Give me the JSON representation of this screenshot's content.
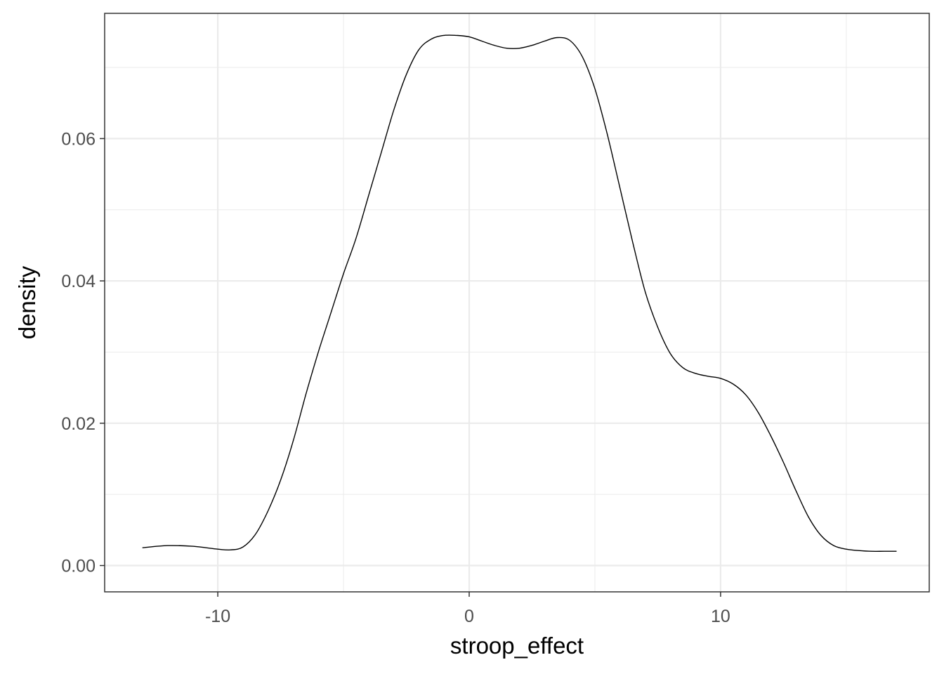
{
  "chart_data": {
    "type": "area",
    "title": "",
    "xlabel": "stroop_effect",
    "ylabel": "density",
    "xlim": [
      -14.5,
      18.3
    ],
    "ylim": [
      -0.0037,
      0.0776
    ],
    "x_ticks": [
      -10,
      0,
      10
    ],
    "x_tick_labels": [
      "-10",
      "0",
      "10"
    ],
    "x_minor_ticks": [
      -5,
      5,
      15
    ],
    "y_ticks": [
      0.0,
      0.02,
      0.04,
      0.06
    ],
    "y_tick_labels": [
      "0.00",
      "0.02",
      "0.04",
      "0.06"
    ],
    "y_minor_ticks": [
      0.01,
      0.03,
      0.05,
      0.07
    ],
    "grid": true,
    "legend": "none",
    "line_color": "#000000",
    "panel_border_color": "#333333",
    "grid_color": "#ebebeb",
    "series": [
      {
        "x": [
          -13.0,
          -12.0,
          -11.0,
          -10.0,
          -9.5,
          -9.0,
          -8.5,
          -8.0,
          -7.5,
          -7.0,
          -6.5,
          -6.0,
          -5.5,
          -5.0,
          -4.5,
          -4.0,
          -3.5,
          -3.0,
          -2.5,
          -2.0,
          -1.5,
          -1.0,
          -0.5,
          0.0,
          0.5,
          1.0,
          1.5,
          2.0,
          2.5,
          3.0,
          3.5,
          4.0,
          4.5,
          5.0,
          5.5,
          6.0,
          6.5,
          7.0,
          7.5,
          8.0,
          8.5,
          9.0,
          9.5,
          10.0,
          10.5,
          11.0,
          11.5,
          12.0,
          12.5,
          13.0,
          13.5,
          14.0,
          14.5,
          15.0,
          15.5,
          16.0,
          16.5,
          17.0
        ],
        "y": [
          0.0025,
          0.0028,
          0.0027,
          0.0023,
          0.0022,
          0.0026,
          0.0044,
          0.0077,
          0.012,
          0.0175,
          0.024,
          0.03,
          0.0355,
          0.041,
          0.046,
          0.052,
          0.058,
          0.064,
          0.069,
          0.0725,
          0.074,
          0.0745,
          0.0745,
          0.0743,
          0.0737,
          0.0731,
          0.0727,
          0.0727,
          0.0731,
          0.0737,
          0.0742,
          0.0738,
          0.0715,
          0.067,
          0.0605,
          0.053,
          0.0455,
          0.0385,
          0.0335,
          0.0298,
          0.0278,
          0.027,
          0.0266,
          0.0263,
          0.0255,
          0.024,
          0.0215,
          0.0182,
          0.0145,
          0.0105,
          0.0068,
          0.0042,
          0.0028,
          0.0023,
          0.0021,
          0.002,
          0.002,
          0.002
        ]
      }
    ]
  }
}
